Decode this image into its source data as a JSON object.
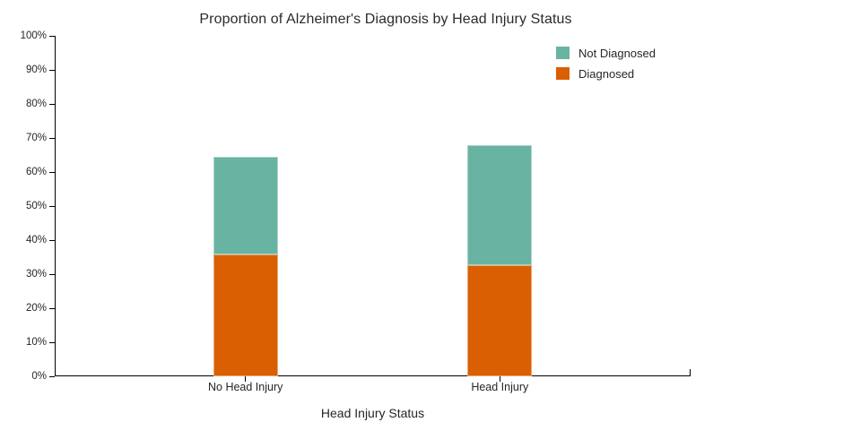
{
  "chart_data": {
    "type": "bar",
    "subtype": "stacked",
    "title": "Proportion of Alzheimer's Diagnosis by Head Injury Status",
    "xlabel": "Head Injury Status",
    "ylabel": "",
    "categories": [
      "No Head Injury",
      "Head Injury"
    ],
    "series": [
      {
        "name": "Not Diagnosed",
        "color": "#69b3a2",
        "segment": "top",
        "values": [
          28.6,
          35.3
        ]
      },
      {
        "name": "Diagnosed",
        "color": "#d95f02",
        "segment": "bottom",
        "values": [
          35.9,
          32.6
        ]
      }
    ],
    "stack_totals": [
      64.5,
      67.9
    ],
    "ylim": [
      0,
      100
    ],
    "yticks": [
      0,
      10,
      20,
      30,
      40,
      50,
      60,
      70,
      80,
      90,
      100
    ],
    "ytick_suffix": "%",
    "grid": false,
    "legend_position": "top-right",
    "axis_color": "#000000",
    "text_color": "#262626"
  }
}
